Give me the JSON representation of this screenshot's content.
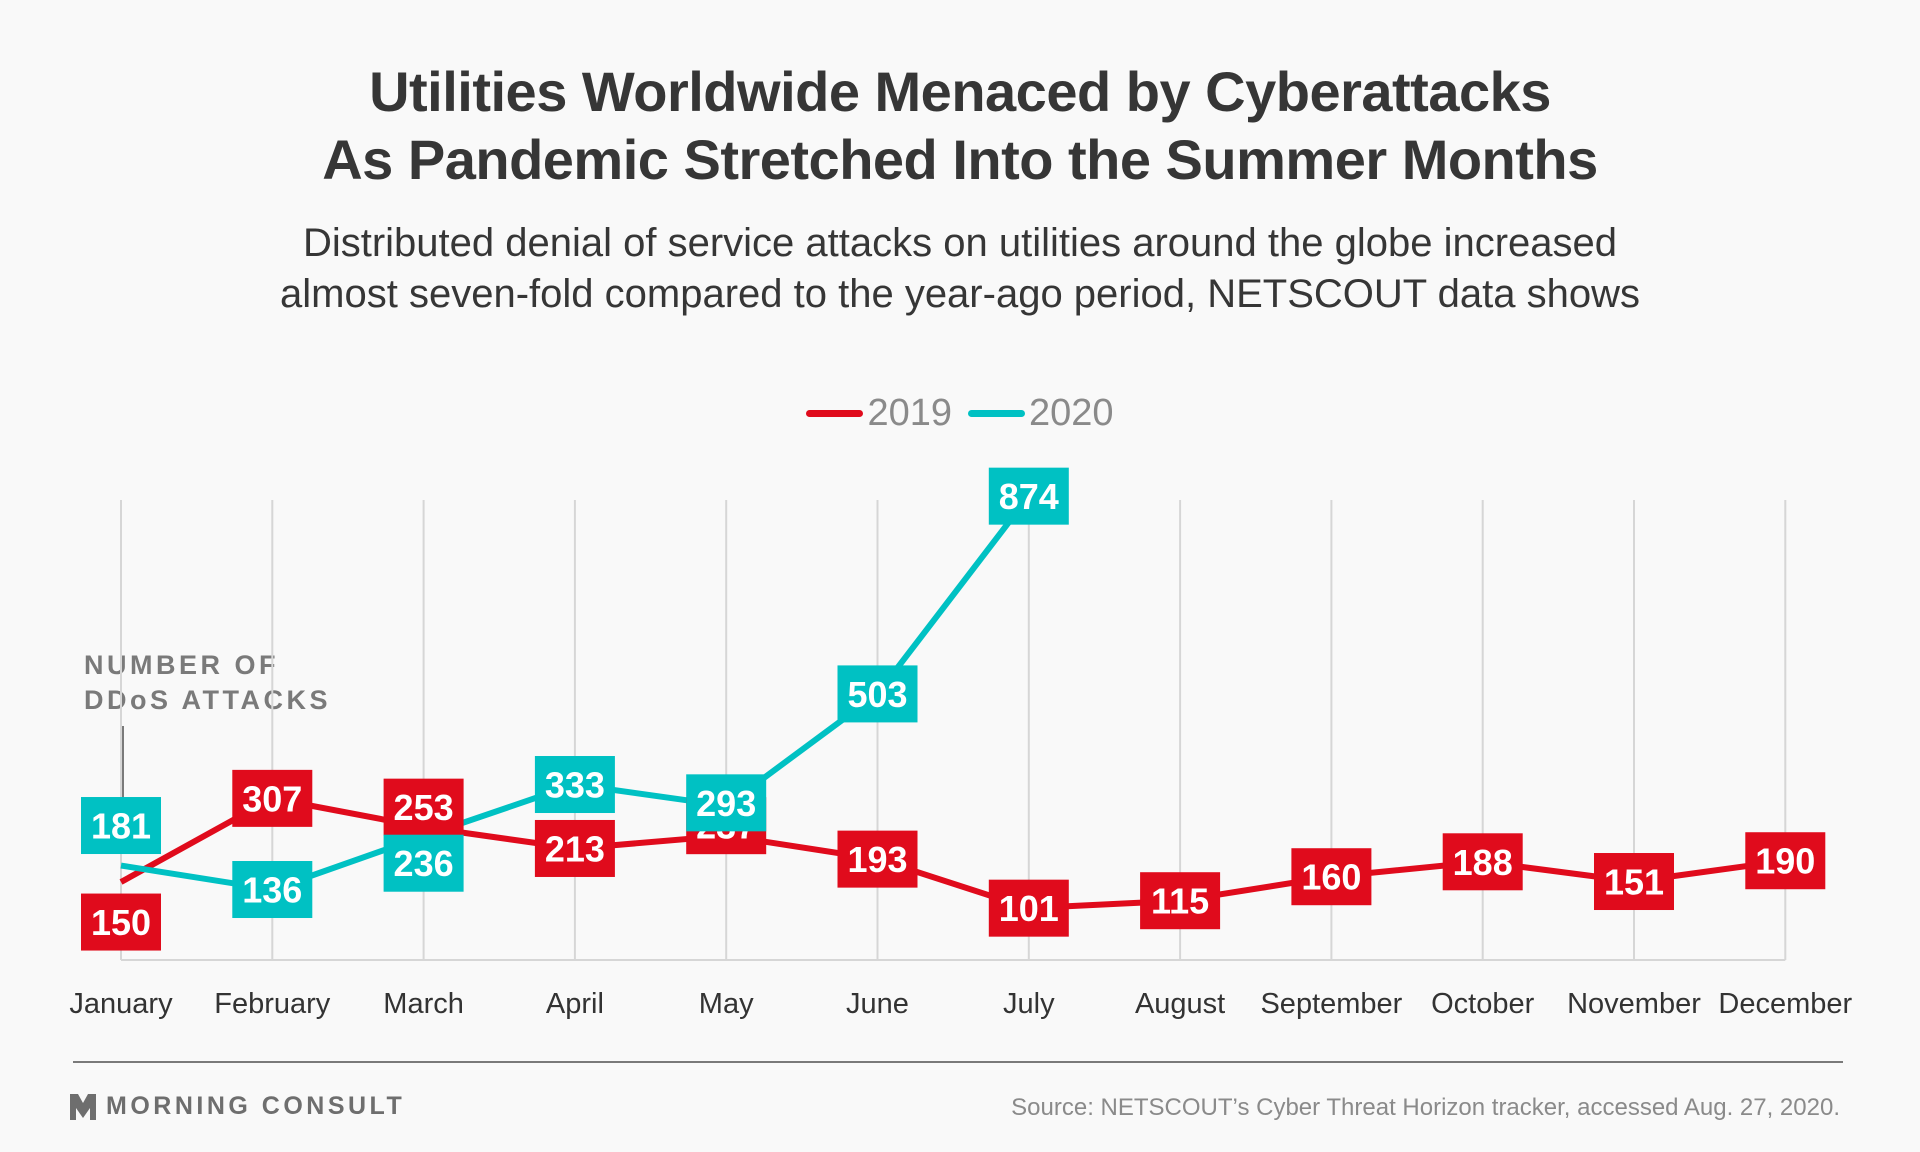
{
  "header": {
    "title_line1": "Utilities Worldwide Menaced by Cyberattacks",
    "title_line2": "As Pandemic Stretched Into the Summer Months",
    "subtitle_line1": "Distributed denial of service attacks on utilities around the globe increased",
    "subtitle_line2": "almost seven-fold compared to the year-ago period, NETSCOUT data shows"
  },
  "footer": {
    "brand": "MORNING CONSULT",
    "brand_icon": "morning-consult-logo-icon",
    "source": "Source: NETSCOUT’s Cyber Threat Horizon tracker, accessed Aug. 27, 2020."
  },
  "chart_data": {
    "type": "line",
    "title": "Utilities Worldwide Menaced by Cyberattacks As Pandemic Stretched Into the Summer Months",
    "subtitle": "Distributed denial of service attacks on utilities around the globe increased almost seven-fold compared to the year-ago period, NETSCOUT data shows",
    "xlabel": "",
    "ylabel": "NUMBER OF DDoS ATTACKS",
    "ylabel_lines": [
      "NUMBER OF",
      "DDoS ATTACKS"
    ],
    "categories": [
      "January",
      "February",
      "March",
      "April",
      "May",
      "June",
      "July",
      "August",
      "September",
      "October",
      "November",
      "December"
    ],
    "series": [
      {
        "name": "2019",
        "color": "#e00b1c",
        "values": [
          150,
          307,
          253,
          213,
          237,
          193,
          101,
          115,
          160,
          188,
          151,
          190
        ]
      },
      {
        "name": "2020",
        "color": "#00c1c3",
        "values": [
          181,
          136,
          236,
          333,
          293,
          503,
          874,
          null,
          null,
          null,
          null,
          null
        ]
      }
    ],
    "data_labels": true,
    "grid": false,
    "legend": "top-center",
    "ylim": [
      0,
      900
    ]
  }
}
